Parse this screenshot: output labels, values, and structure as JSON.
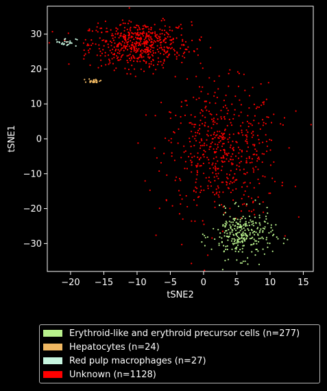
{
  "chart_data": {
    "type": "scatter",
    "xlabel": "tSNE2",
    "ylabel": "tSNE1",
    "xlim": [
      -23.5,
      16.5
    ],
    "ylim": [
      -38,
      38
    ],
    "xticks": [
      -20,
      -15,
      -10,
      -5,
      0,
      5,
      10,
      15
    ],
    "yticks": [
      -30,
      -20,
      -10,
      0,
      10,
      20,
      30
    ],
    "xtick_labels": [
      "−20",
      "−15",
      "−10",
      "−5",
      "0",
      "5",
      "10",
      "15"
    ],
    "ytick_labels": [
      "−30",
      "−20",
      "−10",
      "0",
      "10",
      "20",
      "30"
    ],
    "legend_position": "below",
    "series": [
      {
        "name": "Erythroid-like and erythroid precursor cells (n=277)",
        "color": "#b8f08c",
        "count": 277,
        "clusters": [
          {
            "cx": 5.8,
            "cy": -27.5,
            "sx": 2.3,
            "sy": 3.4
          }
        ]
      },
      {
        "name": "Hepatocytes (n=24)",
        "color": "#f0b862",
        "count": 24,
        "clusters": [
          {
            "cx": -16.4,
            "cy": 16.6,
            "sx": 0.5,
            "sy": 0.3
          }
        ]
      },
      {
        "name": "Red pulp macrophages (n=27)",
        "color": "#c6f5df",
        "count": 27,
        "clusters": [
          {
            "cx": -20.7,
            "cy": 27.7,
            "sx": 0.8,
            "sy": 0.6
          }
        ]
      },
      {
        "name": "Unknown (n=1128)",
        "color": "#ff0000",
        "count": 1128,
        "clusters": [
          {
            "cx": 2.6,
            "cy": -3.5,
            "sx": 4.3,
            "sy": 9.5
          },
          {
            "cx": -9.5,
            "cy": 27.0,
            "sx": 3.8,
            "sy": 3.2
          }
        ]
      }
    ]
  }
}
